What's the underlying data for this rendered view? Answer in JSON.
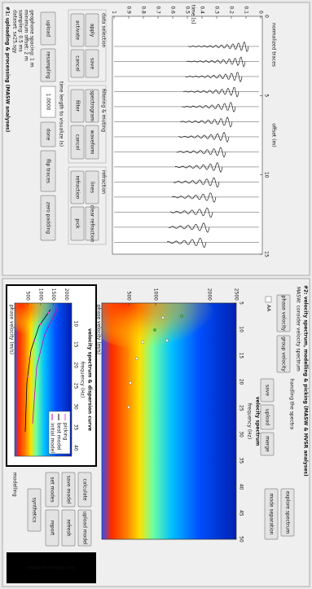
{
  "panel1": {
    "title": "#1: uploading & processing (MASW analyses)",
    "info": [
      "dataset: sx25.sgy",
      "sampling: 0.5 ms",
      "minimum offset: 2 m",
      "geophone spacing: 1 m"
    ],
    "time_label": "time length to visualize (s)",
    "time_value": "1.0000",
    "groups": [
      "data selection",
      "filtering & muting",
      "refraction"
    ],
    "buttons": [
      "upload",
      "resampling",
      "done",
      "flip traces",
      "zero padding",
      "activate",
      "cancel",
      "apply",
      "save",
      "filter",
      "cancel",
      "spectrogram",
      "waveform",
      "refraction",
      "pick",
      "lines",
      "clear refraction"
    ]
  },
  "seismogram": {
    "title": "normalized traces",
    "xlabel": "time [s]",
    "ylabel": "offset (m)",
    "xlim": [
      0,
      1
    ],
    "ylim": [
      0,
      15
    ],
    "xticks": [
      0,
      0.1,
      0.2,
      0.3,
      0.4,
      0.5,
      0.6,
      0.7,
      0.8,
      0.9,
      1
    ],
    "yticks": [
      0,
      5,
      10,
      15
    ]
  },
  "panel2": {
    "title": "#2: velocity spectrum, modelling & picking (MASW & HVSR analyses)",
    "subtitle": "MASW: consider velocity spectrum",
    "checkbox": "AA",
    "group_label": "handling the spectra",
    "buttons": [
      "phase velocity",
      "group velocity",
      "save",
      "upload",
      "merge",
      "explore spectrum",
      "mode separation"
    ],
    "modelling_label": "modelling",
    "model_buttons": [
      "calculate",
      "upload model",
      "save model",
      "refresh",
      "set modes",
      "report",
      "synthetics"
    ]
  },
  "spectrum": {
    "title": "velocity spectrum",
    "xlabel": "frequency (Hz)",
    "ylabel": "phase velocity (m/s)",
    "xlim": [
      5,
      50
    ],
    "xticks": [
      5,
      10,
      15,
      20,
      25,
      30,
      35,
      40,
      45,
      50
    ],
    "ylim": [
      0,
      2500
    ],
    "yticks": [
      500,
      1000,
      2000,
      2500
    ]
  },
  "inset": {
    "title": "velocity spectrum & dispersion curve",
    "xlabel": "frequency (Hz)",
    "ylabel": "phase velocity (m/s)",
    "xlim": [
      5,
      42
    ],
    "xticks": [
      10,
      15,
      20,
      25,
      30,
      35,
      40
    ],
    "ylim": [
      0,
      2200
    ],
    "yticks": [
      500,
      1000,
      1500,
      2000
    ],
    "legend": [
      "picking",
      "best model",
      "initial model"
    ]
  },
  "logo": "www.winmasw.com"
}
